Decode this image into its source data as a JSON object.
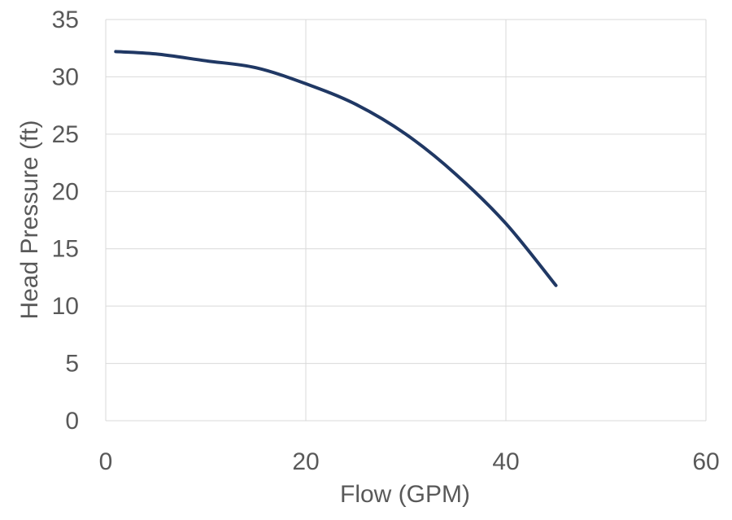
{
  "chart_data": {
    "type": "line",
    "title": "",
    "xlabel": "Flow (GPM)",
    "ylabel": "Head Pressure (ft)",
    "xlim": [
      0,
      60
    ],
    "ylim": [
      0,
      35
    ],
    "xticks": [
      0,
      20,
      40,
      60
    ],
    "yticks": [
      0,
      5,
      10,
      15,
      20,
      25,
      30,
      35
    ],
    "grid": true,
    "legend": "none",
    "series": [
      {
        "color": "#203864",
        "x": [
          1,
          5,
          10,
          15,
          20,
          25,
          30,
          35,
          40,
          45
        ],
        "y": [
          32.2,
          32.0,
          31.4,
          30.8,
          29.4,
          27.6,
          25.0,
          21.5,
          17.2,
          11.8
        ]
      }
    ]
  }
}
